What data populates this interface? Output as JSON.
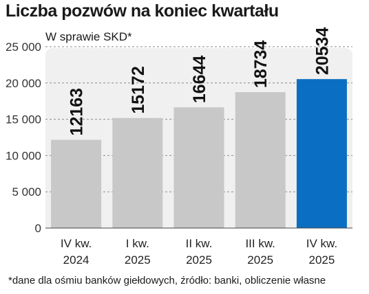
{
  "header": {
    "title": "Liczba pozwów na koniec kwartału",
    "subtitle": "W sprawie SKD*"
  },
  "footnote": "*dane dla ośmiu banków giełdowych, źródło: banki, obliczenie własne",
  "colors": {
    "panel": "#f0f0f0",
    "bar": "#c8c8c8",
    "highlight": "#0a6fc2",
    "grid": "#8a8a8a"
  },
  "chart_data": {
    "type": "bar",
    "title": "Liczba pozwów na koniec kwartału",
    "subtitle": "W sprawie SKD*",
    "categories": [
      [
        "IV kw.",
        "2024"
      ],
      [
        "I kw.",
        "2025"
      ],
      [
        "II kw.",
        "2025"
      ],
      [
        "III kw.",
        "2025"
      ],
      [
        "IV kw.",
        "2025"
      ]
    ],
    "values": [
      12163,
      15172,
      16644,
      18734,
      20534
    ],
    "value_labels": [
      "12163",
      "15172",
      "16644",
      "18734",
      "20534"
    ],
    "highlight_index": 4,
    "ylim": [
      0,
      25000
    ],
    "yticks": [
      0,
      5000,
      10000,
      15000,
      20000,
      25000
    ],
    "ytick_labels": [
      "0",
      "5 000",
      "10 000",
      "15 000",
      "20 000",
      "25 000"
    ],
    "grid": true
  }
}
